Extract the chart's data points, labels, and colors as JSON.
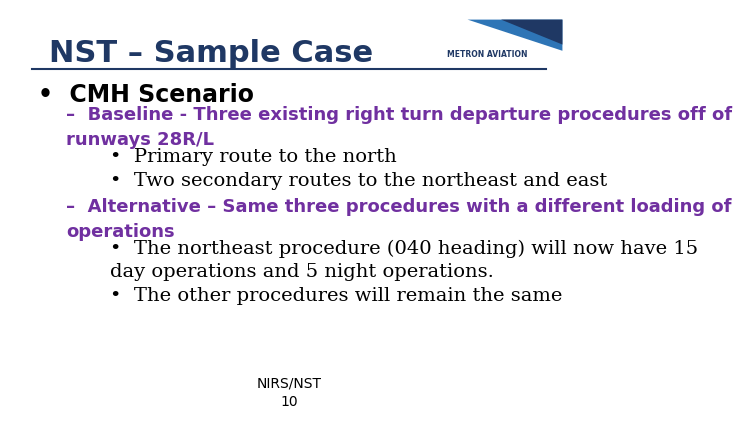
{
  "title": "NST – Sample Case",
  "title_color": "#1F3864",
  "title_fontsize": 22,
  "background_color": "#FFFFFF",
  "line_color": "#1F3864",
  "bullet1": "CMH Scenario",
  "bullet1_color": "#000000",
  "bullet1_fontsize": 17,
  "dash1_text": "Baseline - Three existing right turn departure procedures off of\nrunways 28R/L",
  "dash1_color": "#7030A0",
  "dash1_fontsize": 13,
  "sub1a": "Primary route to the north",
  "sub1b": "Two secondary routes to the northeast and east",
  "sub_color": "#000000",
  "sub_fontsize": 14,
  "dash2_text": "Alternative – Same three procedures with a different loading of\noperations",
  "dash2_color": "#7030A0",
  "dash2_fontsize": 13,
  "sub2a": "The northeast procedure (040 heading) will now have 15\nday operations and 5 night operations.",
  "sub2b": "The other procedures will remain the same",
  "sub2_fontsize": 14,
  "footer": "NIRS/NST\n10",
  "footer_color": "#000000",
  "footer_fontsize": 10
}
